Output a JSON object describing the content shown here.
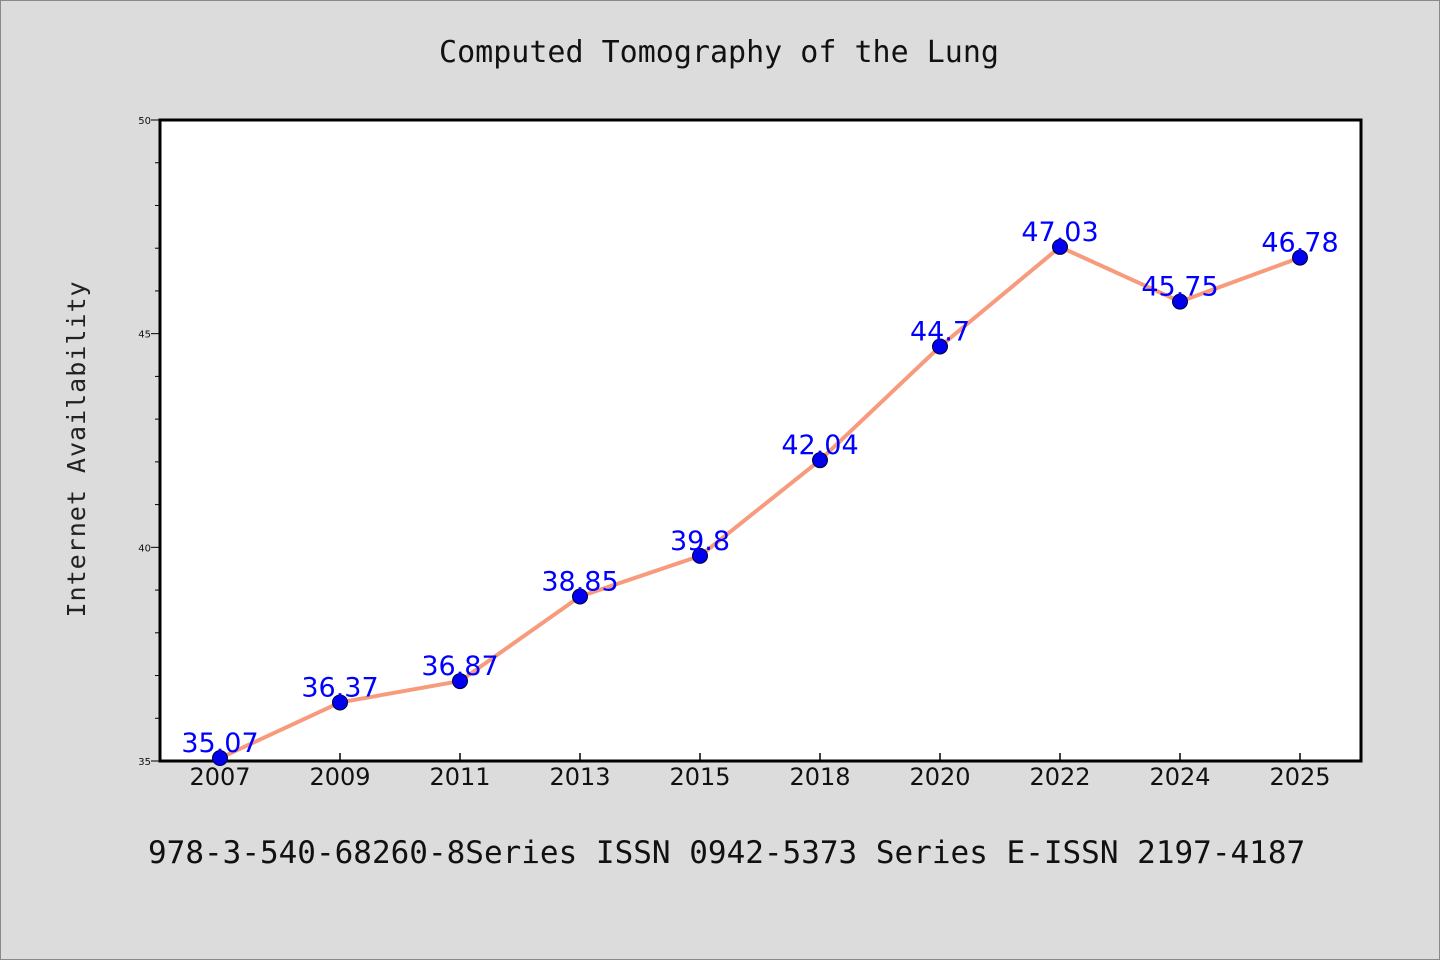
{
  "footer": "978-3-540-68260-8Series ISSN 0942-5373 Series E-ISSN 2197-4187",
  "chart_data": {
    "type": "line",
    "title": "Computed Tomography of the Lung",
    "xlabel": "",
    "ylabel": "Internet Availability",
    "categories": [
      "2007",
      "2009",
      "2011",
      "2013",
      "2015",
      "2018",
      "2020",
      "2022",
      "2024",
      "2025"
    ],
    "series": [
      {
        "values": [
          35.07,
          36.37,
          36.87,
          38.85,
          39.8,
          42.04,
          44.7,
          47.03,
          45.75,
          46.78
        ],
        "labels": [
          "35.07",
          "36.37",
          "36.87",
          "38.85",
          "39.8",
          "42.04",
          "44.7",
          "47.03",
          "45.75",
          "46.78"
        ],
        "line_color": "#f79b7c",
        "marker_color": "#0000ee",
        "label_color": "#0000ff"
      }
    ],
    "ylim": [
      35,
      50
    ],
    "yticks": [
      35,
      40,
      45,
      50
    ],
    "grid": false,
    "legend": "none"
  }
}
